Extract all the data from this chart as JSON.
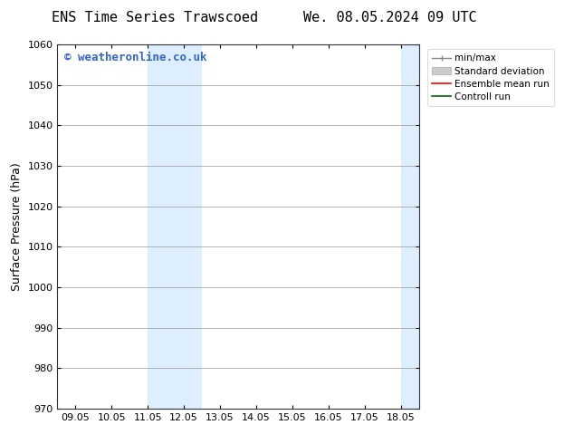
{
  "title_left": "ENS Time Series Trawscoed",
  "title_right": "We. 08.05.2024 09 UTC",
  "ylabel": "Surface Pressure (hPa)",
  "ylim": [
    970,
    1060
  ],
  "yticks": [
    970,
    980,
    990,
    1000,
    1010,
    1020,
    1030,
    1040,
    1050,
    1060
  ],
  "xtick_labels": [
    "09.05",
    "10.05",
    "11.05",
    "12.05",
    "13.05",
    "14.05",
    "15.05",
    "16.05",
    "17.05",
    "18.05"
  ],
  "xtick_positions": [
    0,
    1,
    2,
    3,
    4,
    5,
    6,
    7,
    8,
    9
  ],
  "xlim": [
    -0.5,
    9.5
  ],
  "shaded_regions": [
    {
      "x_start": 2.0,
      "x_end": 2.5,
      "color": "#ddeeff"
    },
    {
      "x_start": 2.5,
      "x_end": 3.5,
      "color": "#ddeeff"
    },
    {
      "x_start": 9.0,
      "x_end": 9.5,
      "color": "#ddeeff"
    }
  ],
  "watermark_text": "© weatheronline.co.uk",
  "watermark_color": "#3366cc",
  "watermark_fontsize": 9,
  "background_color": "#ffffff",
  "grid_color": "#999999",
  "title_fontsize": 11,
  "legend_entries": [
    {
      "label": "min/max"
    },
    {
      "label": "Standard deviation"
    },
    {
      "label": "Ensemble mean run"
    },
    {
      "label": "Controll run"
    }
  ]
}
